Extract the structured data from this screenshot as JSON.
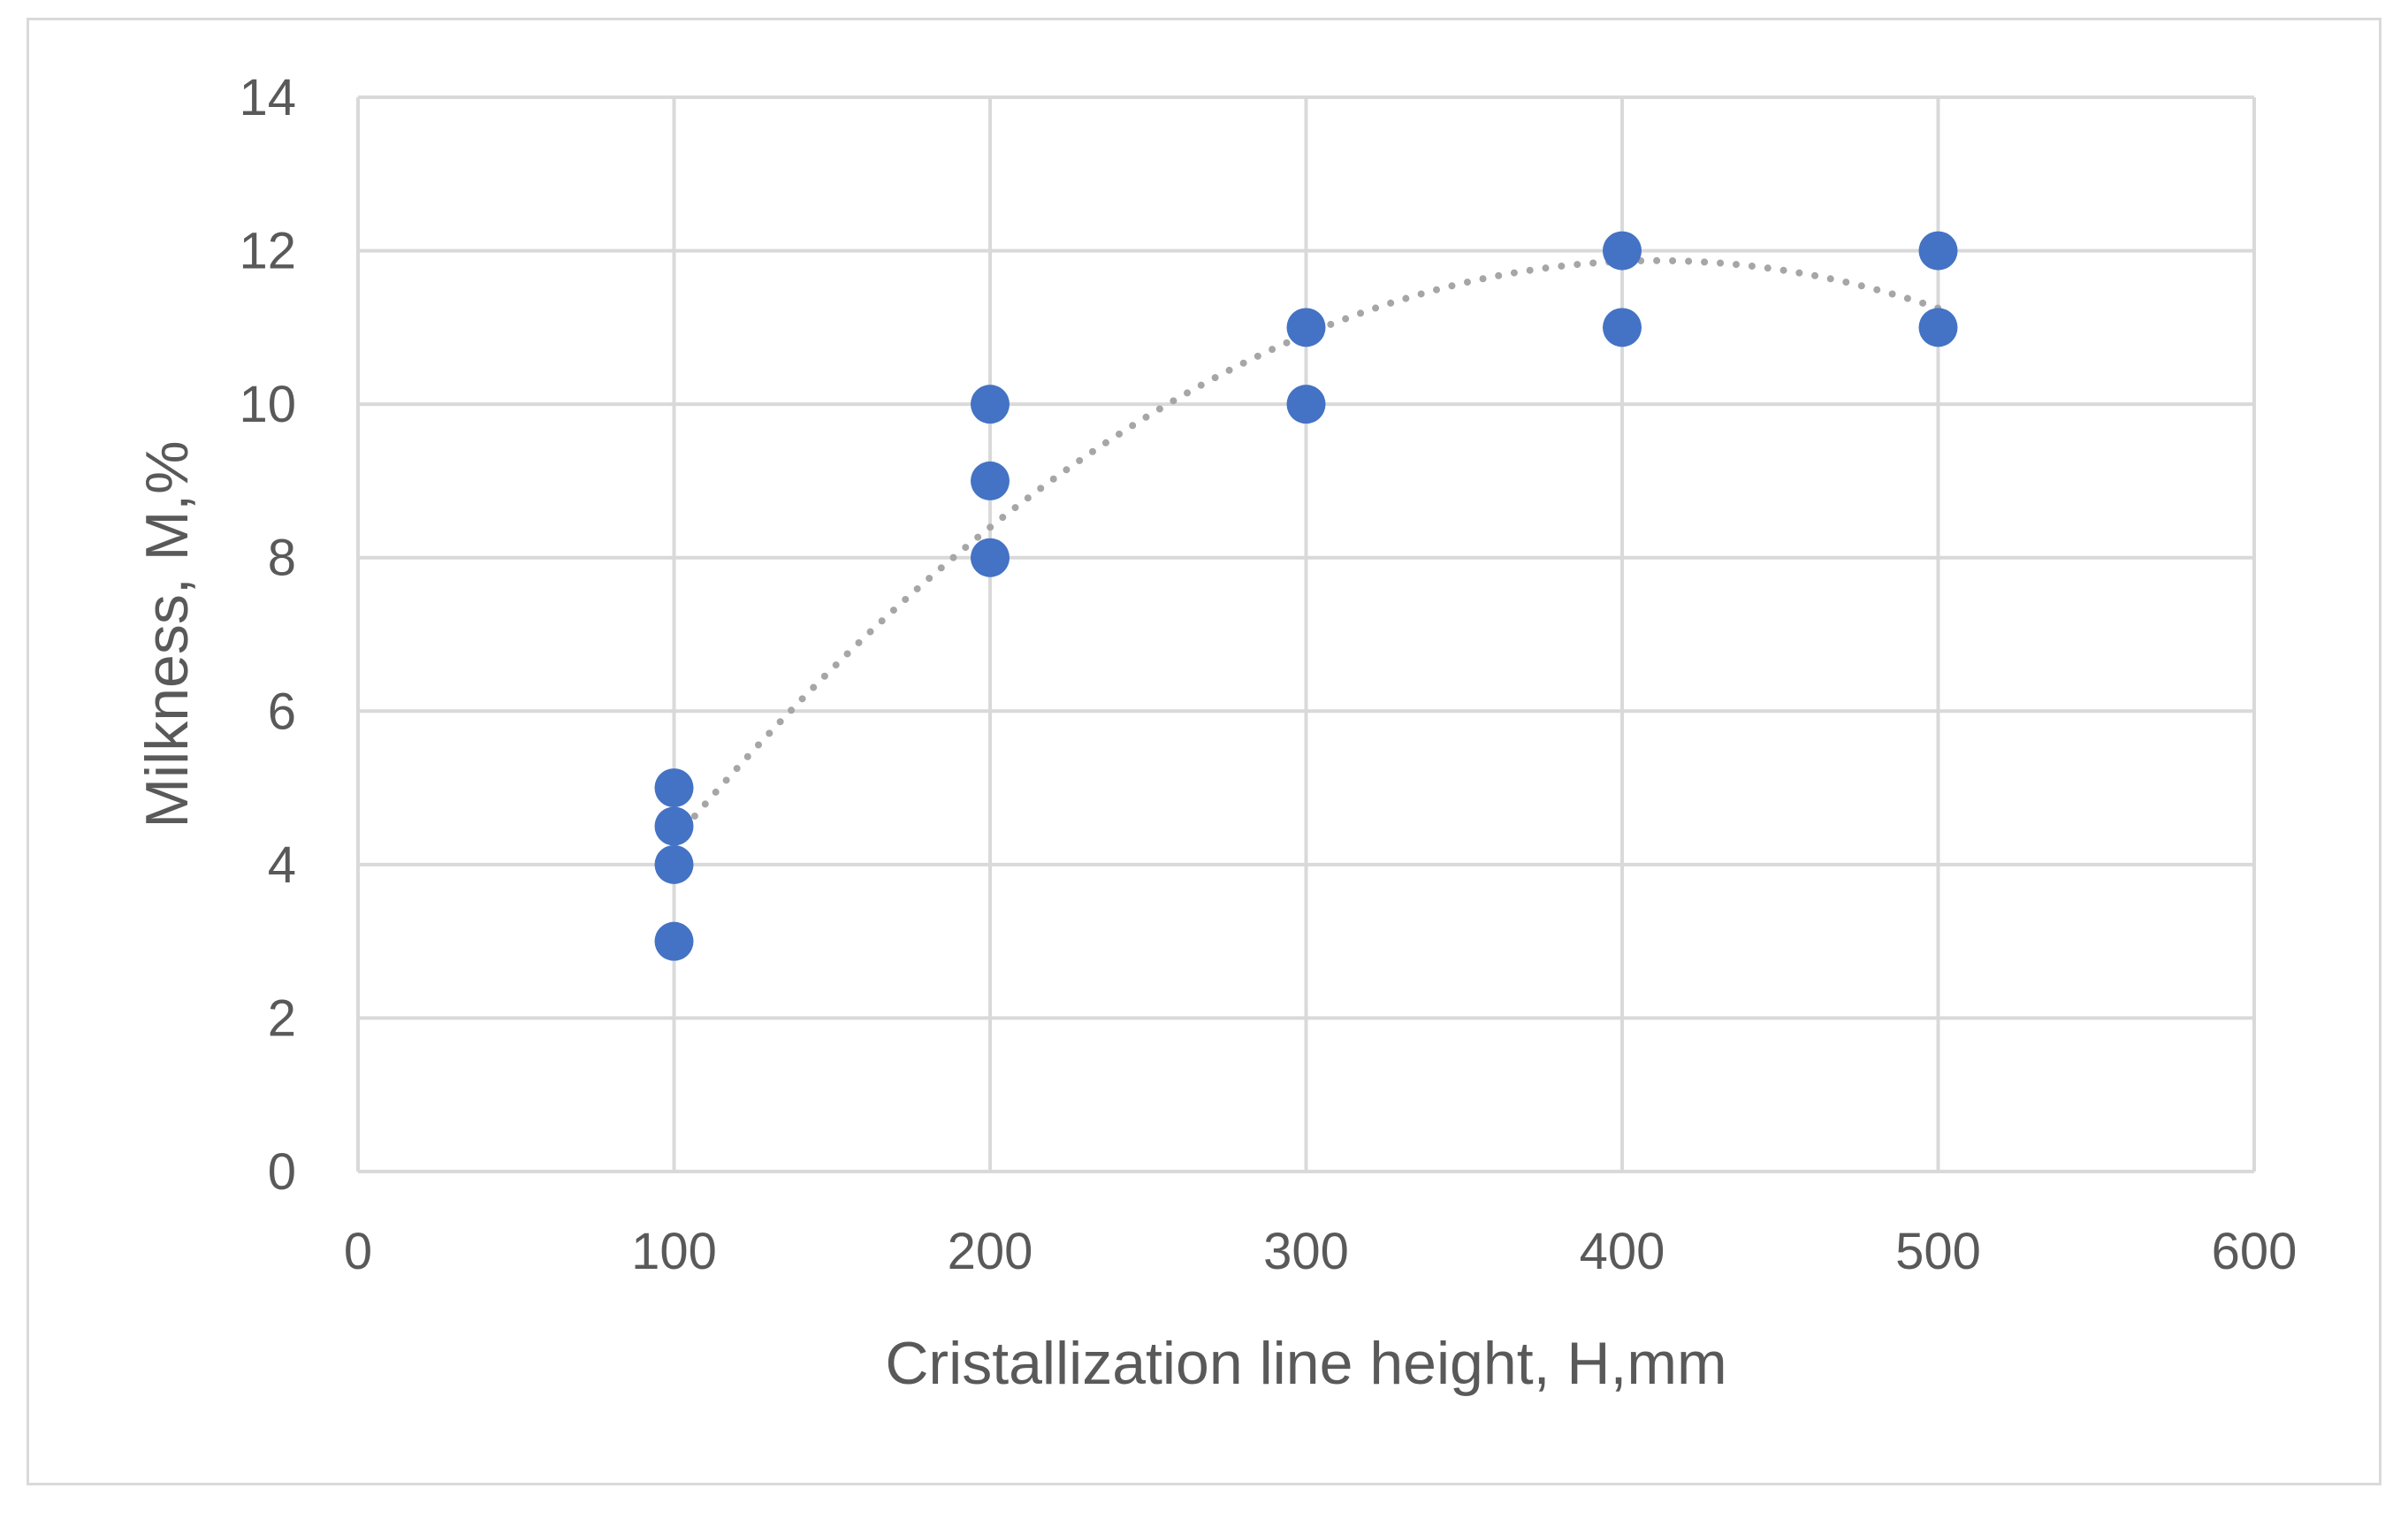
{
  "chart_data": {
    "type": "scatter",
    "title": "",
    "xlabel": "Cristallization line height, H,mm",
    "ylabel": "Milkness, M,%",
    "xlim": [
      0,
      600
    ],
    "ylim": [
      0,
      14
    ],
    "x_ticks": [
      0,
      100,
      200,
      300,
      400,
      500,
      600
    ],
    "y_ticks": [
      0,
      2,
      4,
      6,
      8,
      10,
      12,
      14
    ],
    "x_tick_labels": [
      "0",
      "100",
      "200",
      "300",
      "400",
      "500",
      "600"
    ],
    "y_tick_labels": [
      "0",
      "2",
      "4",
      "6",
      "8",
      "10",
      "12",
      "14"
    ],
    "grid": true,
    "legend": "none",
    "series": [
      {
        "name": "Milkness",
        "color": "#4472c4",
        "x": [
          100,
          100,
          100,
          100,
          200,
          200,
          200,
          300,
          300,
          400,
          400,
          500,
          500
        ],
        "y": [
          5,
          4.5,
          4,
          3,
          10,
          9,
          8,
          11,
          10,
          12,
          11,
          12,
          11
        ]
      }
    ],
    "trendline": {
      "type": "polynomial",
      "order": 2,
      "style": "dotted",
      "color": "#a6a6a6",
      "x_range": [
        100,
        500
      ]
    }
  }
}
